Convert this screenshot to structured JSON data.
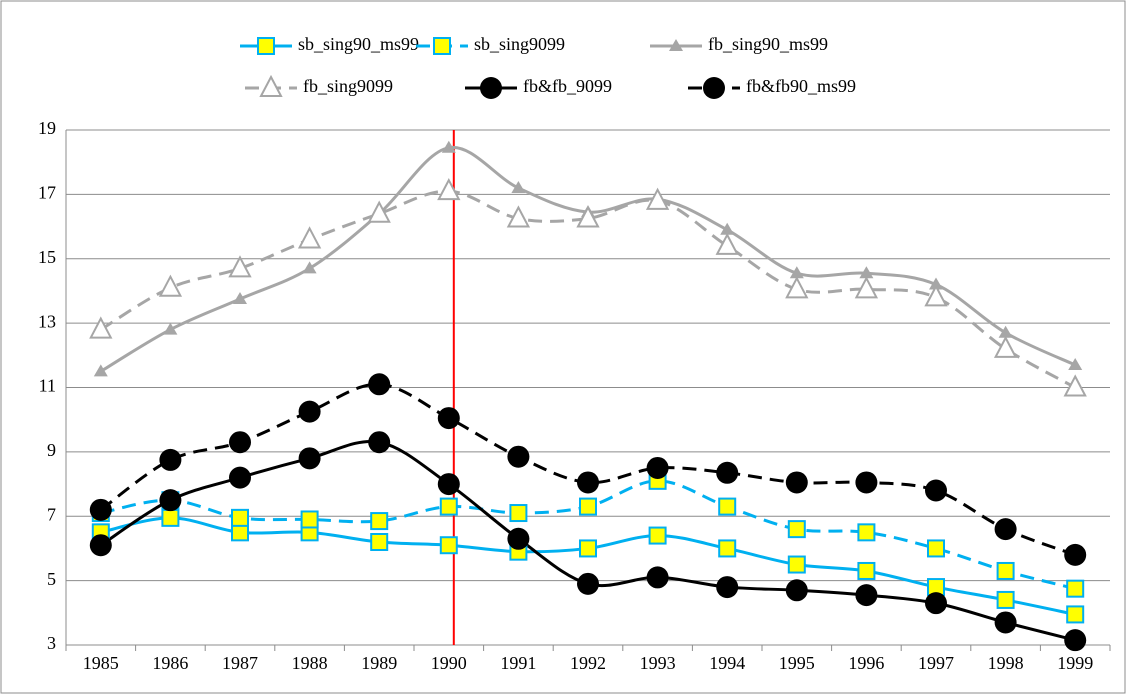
{
  "chart_data": {
    "type": "line",
    "categories": [
      "1985",
      "1986",
      "1987",
      "1988",
      "1989",
      "1990",
      "1991",
      "1992",
      "1993",
      "1994",
      "1995",
      "1996",
      "1997",
      "1998",
      "1999"
    ],
    "series": [
      {
        "name": "sb_sing90_ms99",
        "color": "#00b0f0",
        "dash": false,
        "marker": "square",
        "values": [
          6.5,
          6.95,
          6.5,
          6.5,
          6.2,
          6.1,
          5.9,
          6.0,
          6.4,
          6.0,
          5.5,
          5.3,
          4.8,
          4.4,
          3.95
        ]
      },
      {
        "name": "sb_sing9099",
        "color": "#00b0f0",
        "dash": true,
        "marker": "square",
        "values": [
          7.1,
          7.5,
          6.95,
          6.9,
          6.85,
          7.3,
          7.1,
          7.3,
          8.1,
          7.3,
          6.6,
          6.5,
          6.0,
          5.3,
          4.75
        ]
      },
      {
        "name": "fb_sing90_ms99",
        "color": "#a6a6a6",
        "dash": false,
        "marker": "triangle",
        "values": [
          11.5,
          12.8,
          13.75,
          14.7,
          16.4,
          18.45,
          17.2,
          16.45,
          16.85,
          15.9,
          14.55,
          14.55,
          14.2,
          12.7,
          11.7
        ]
      },
      {
        "name": "fb_sing9099",
        "color": "#a6a6a6",
        "dash": true,
        "marker": "open-triangle",
        "values": [
          12.8,
          14.1,
          14.7,
          15.6,
          16.4,
          17.1,
          16.25,
          16.25,
          16.8,
          15.4,
          14.05,
          14.05,
          13.8,
          12.2,
          11.0
        ]
      },
      {
        "name": "fb&fb_9099",
        "color": "#000000",
        "dash": false,
        "marker": "circle",
        "values": [
          6.1,
          7.5,
          8.2,
          8.8,
          9.3,
          8.0,
          6.3,
          4.9,
          5.1,
          4.8,
          4.7,
          4.55,
          4.3,
          3.7,
          3.15
        ]
      },
      {
        "name": "fb&fb90_ms99",
        "color": "#000000",
        "dash": true,
        "marker": "circle",
        "values": [
          7.2,
          8.75,
          9.3,
          10.25,
          11.1,
          10.05,
          8.85,
          8.05,
          8.5,
          8.35,
          8.05,
          8.05,
          7.8,
          6.6,
          5.8
        ]
      }
    ],
    "ylim": [
      3,
      19
    ],
    "yticks": [
      3,
      5,
      7,
      9,
      11,
      13,
      15,
      17,
      19
    ],
    "grid": true,
    "smooth": true,
    "vline": {
      "at": "1990",
      "color": "#ff0000"
    }
  }
}
